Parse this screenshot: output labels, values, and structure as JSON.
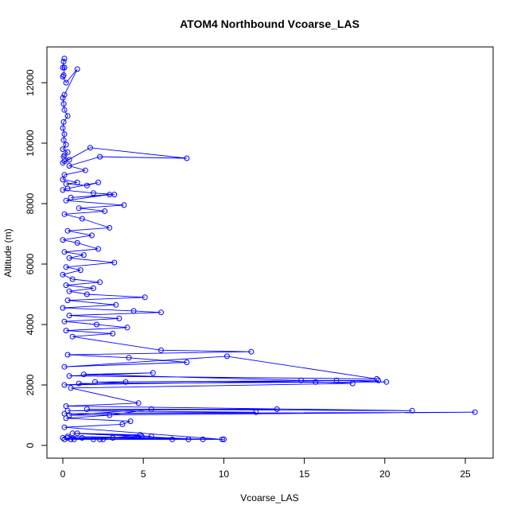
{
  "chart_data": {
    "type": "line",
    "title": "ATOM4 Northbound Vcoarse_LAS",
    "xlabel": "Vcoarse_LAS",
    "ylabel": "Altitude (m)",
    "xlim": [
      0,
      26
    ],
    "ylim": [
      0,
      13000
    ],
    "xticks": [
      0,
      5,
      10,
      15,
      20,
      25
    ],
    "yticks": [
      0,
      2000,
      4000,
      6000,
      8000,
      10000,
      12000
    ],
    "grid": false,
    "legend": "none",
    "marker": "open-circle",
    "series": [
      {
        "color": "#0000FF",
        "x": [
          0.1,
          0.05,
          0.0,
          0.1,
          0.05,
          0.0,
          0.2,
          0.9,
          0.1,
          0.0,
          0.05,
          0.1,
          0.3,
          0.05,
          0.0,
          0.1,
          0.05,
          0.2,
          0.0,
          0.3,
          0.1,
          0.05,
          0.4,
          0.1,
          0.0,
          1.7,
          7.7,
          2.3,
          0.4,
          1.4,
          0.1,
          0.0,
          0.9,
          0.2,
          1.5,
          2.2,
          0.3,
          0.0,
          1.9,
          3.2,
          0.5,
          2.9,
          0.2,
          3.8,
          1.0,
          2.6,
          0.1,
          1.2,
          2.9,
          0.3,
          1.8,
          0.0,
          0.9,
          2.2,
          0.1,
          1.3,
          0.4,
          3.2,
          0.2,
          1.1,
          0.0,
          0.6,
          2.3,
          0.2,
          1.9,
          0.4,
          1.5,
          5.1,
          0.3,
          3.3,
          0.0,
          4.4,
          6.1,
          0.4,
          3.5,
          0.1,
          2.1,
          4.0,
          0.2,
          3.1,
          0.6,
          6.1,
          11.7,
          0.3,
          4.1,
          7.7,
          0.1,
          10.2,
          19.5,
          0.4,
          5.6,
          1.3,
          14.8,
          19.6,
          2.0,
          3.9,
          0.1,
          17.0,
          20.1,
          1.0,
          15.7,
          18.0,
          0.5,
          4.7,
          0.2,
          21.7,
          1.5,
          13.3,
          0.3,
          12.0,
          0.1,
          25.6,
          0.4,
          5.5,
          2.9,
          0.2,
          4.2,
          3.7,
          0.1,
          9.9,
          2.5,
          0.3,
          7.8,
          4.9,
          0.6,
          8.7,
          1.2,
          6.8,
          0.3,
          10.0,
          0.5,
          3.1,
          0.1,
          5.5,
          0.9,
          4.8,
          2.3,
          0.0,
          1.9,
          0.7
        ],
        "y": [
          12800,
          12700,
          12500,
          12500,
          12250,
          12200,
          12000,
          12450,
          11600,
          11500,
          11300,
          11100,
          10900,
          10700,
          10500,
          10300,
          10100,
          9950,
          9800,
          9700,
          9600,
          9550,
          9450,
          9400,
          9350,
          9850,
          9500,
          9550,
          9250,
          9100,
          8950,
          8800,
          8700,
          8650,
          8600,
          8700,
          8500,
          8450,
          8350,
          8300,
          8200,
          8300,
          8100,
          7950,
          7850,
          7750,
          7650,
          7500,
          7200,
          7100,
          6950,
          6800,
          6700,
          6500,
          6400,
          6300,
          6200,
          6050,
          5900,
          5800,
          5650,
          5500,
          5400,
          5300,
          5200,
          5100,
          5000,
          4900,
          4800,
          4650,
          4550,
          4450,
          4400,
          4300,
          4200,
          4100,
          4000,
          3900,
          3800,
          3700,
          3600,
          3150,
          3100,
          3000,
          2900,
          2750,
          2600,
          2950,
          2200,
          2300,
          2400,
          2350,
          2150,
          2150,
          2100,
          2100,
          2000,
          2150,
          2100,
          2050,
          2100,
          2050,
          1900,
          1400,
          1300,
          1150,
          1200,
          1200,
          1150,
          1100,
          1050,
          1100,
          1000,
          1200,
          1000,
          900,
          800,
          700,
          600,
          200,
          200,
          250,
          200,
          300,
          400,
          200,
          250,
          200,
          300,
          200,
          200,
          250,
          200,
          300,
          400,
          350,
          200,
          250,
          200,
          200
        ]
      }
    ]
  }
}
